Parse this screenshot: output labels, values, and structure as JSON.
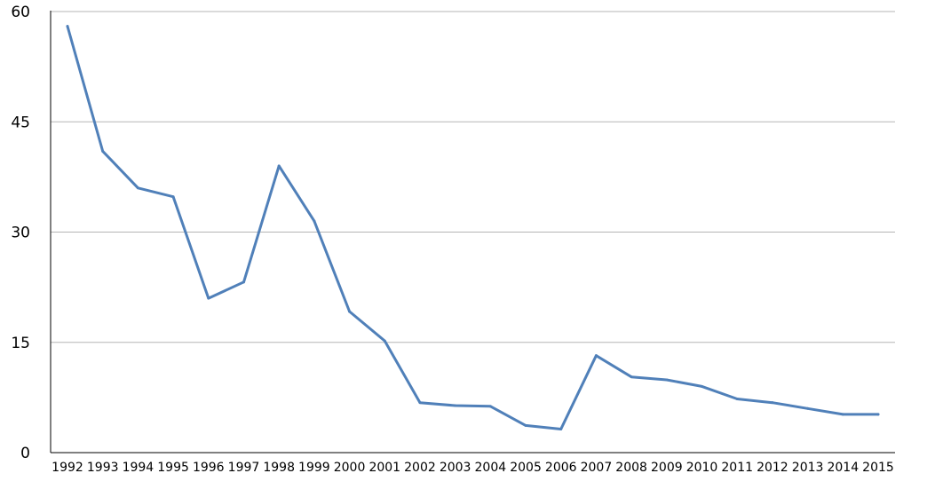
{
  "chart_data": {
    "type": "line",
    "title": "",
    "xlabel": "",
    "ylabel": "",
    "x": [
      "1992",
      "1993",
      "1994",
      "1995",
      "1996",
      "1997",
      "1998",
      "1999",
      "2000",
      "2001",
      "2002",
      "2003",
      "2004",
      "2005",
      "2006",
      "2007",
      "2008",
      "2009",
      "2010",
      "2011",
      "2012",
      "2013",
      "2014",
      "2015"
    ],
    "series": [
      {
        "values": [
          58,
          41,
          36,
          34.8,
          21,
          23.2,
          39,
          31.5,
          19.2,
          15.2,
          6.8,
          6.4,
          6.3,
          3.7,
          3.2,
          13.2,
          10.3,
          9.9,
          9,
          7.3,
          6.8,
          6,
          5.2,
          5.2
        ],
        "color": "#5080b9"
      }
    ],
    "ylim": [
      0,
      60
    ],
    "yticks": [
      "0",
      "15",
      "30",
      "45",
      "60"
    ],
    "grid": true,
    "gridline_color": "#b5b5b5",
    "axis_color": "#000000"
  }
}
